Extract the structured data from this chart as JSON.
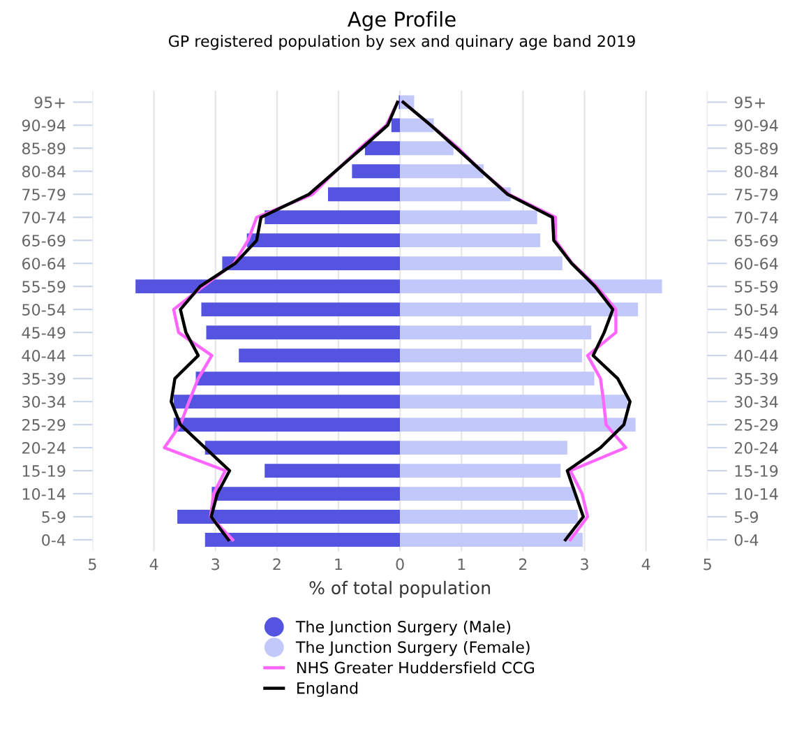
{
  "chart_data": {
    "type": "bar",
    "orientation": "horizontal",
    "stacked": true,
    "title": "Age Profile",
    "subtitle": "GP registered population by sex and quinary age band 2019",
    "xlabel": "% of total population",
    "categories": [
      "95+",
      "90-94",
      "85-89",
      "80-84",
      "75-79",
      "70-74",
      "65-69",
      "60-64",
      "55-59",
      "50-54",
      "45-49",
      "40-44",
      "35-39",
      "30-34",
      "25-29",
      "20-24",
      "15-19",
      "10-14",
      "5-9",
      "0-4"
    ],
    "series": [
      {
        "name": "The Junction Surgery (Male)",
        "color": "#5454e0",
        "values": [
          -0.02,
          -0.14,
          -0.57,
          -0.78,
          -1.17,
          -2.2,
          -2.49,
          -2.89,
          -4.3,
          -3.23,
          -3.15,
          -2.62,
          -3.32,
          -3.68,
          -3.68,
          -3.17,
          -2.2,
          -3.06,
          -3.62,
          -3.17
        ]
      },
      {
        "name": "The Junction Surgery (Female)",
        "color": "#c2c9fa",
        "values": [
          0.23,
          0.55,
          0.87,
          1.36,
          1.8,
          2.23,
          2.28,
          2.64,
          4.26,
          3.87,
          3.11,
          2.96,
          3.16,
          3.7,
          3.83,
          2.72,
          2.61,
          2.85,
          2.89,
          2.97
        ]
      },
      {
        "name": "NHS Greater Huddersfield CCG",
        "type": "line",
        "color": "#ff66ff",
        "values": [
          -0.04,
          -0.22,
          -0.65,
          -1.05,
          -1.42,
          -2.33,
          -2.47,
          -2.7,
          -3.2,
          -3.68,
          -3.6,
          -3.06,
          -3.28,
          -3.43,
          -3.57,
          -3.83,
          -2.84,
          -3.03,
          -3.08,
          -2.72
        ]
      },
      {
        "type": "line",
        "color": "#ff66ff",
        "values": [
          0.05,
          0.5,
          0.95,
          1.33,
          1.77,
          2.53,
          2.53,
          2.8,
          3.2,
          3.51,
          3.51,
          3.05,
          3.26,
          3.31,
          3.35,
          3.67,
          2.77,
          2.96,
          3.05,
          2.77
        ]
      },
      {
        "name": "England",
        "type": "line",
        "color": "#000000",
        "values": [
          -0.04,
          -0.2,
          -0.62,
          -1.05,
          -1.48,
          -2.26,
          -2.33,
          -2.68,
          -3.25,
          -3.57,
          -3.48,
          -3.28,
          -3.66,
          -3.72,
          -3.57,
          -3.17,
          -2.77,
          -2.97,
          -3.07,
          -2.79
        ]
      },
      {
        "type": "line",
        "color": "#000000",
        "values": [
          0.05,
          0.5,
          0.92,
          1.33,
          1.75,
          2.48,
          2.5,
          2.79,
          3.17,
          3.46,
          3.32,
          3.14,
          3.54,
          3.74,
          3.64,
          3.26,
          2.72,
          2.85,
          2.98,
          2.69
        ]
      }
    ],
    "xlim": [
      -5,
      5
    ],
    "xticks": [
      {
        "value": -5,
        "label": "5"
      },
      {
        "value": -4,
        "label": "4"
      },
      {
        "value": -3,
        "label": "3"
      },
      {
        "value": -2,
        "label": "2"
      },
      {
        "value": -1,
        "label": "1"
      },
      0,
      1,
      2,
      3,
      4,
      5
    ],
    "grid": "x",
    "legend": "bottom",
    "marker": "none",
    "line_style": "solid"
  }
}
